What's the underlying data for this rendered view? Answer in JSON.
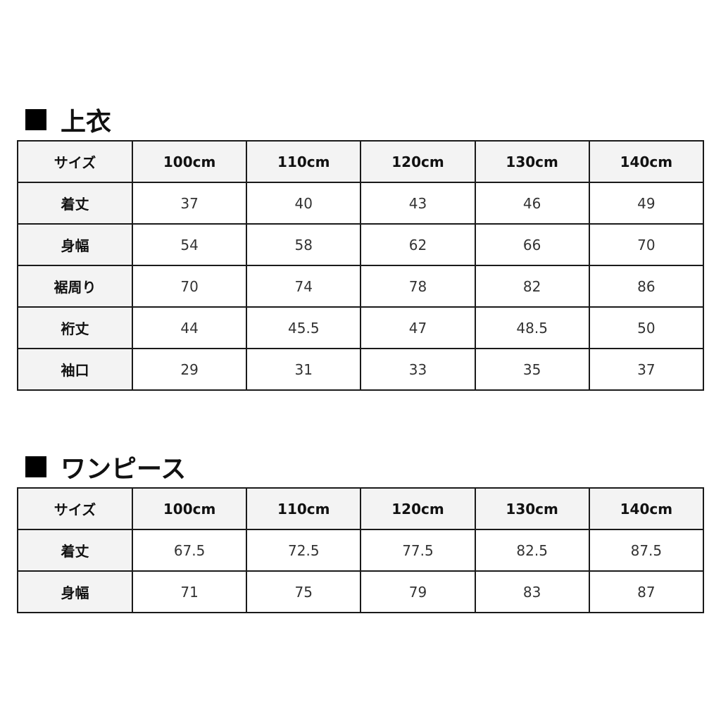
{
  "sections": [
    {
      "title": "上衣",
      "header": [
        "サイズ",
        "100cm",
        "110cm",
        "120cm",
        "130cm",
        "140cm"
      ],
      "rows": [
        {
          "label": "着丈",
          "values": [
            "37",
            "40",
            "43",
            "46",
            "49"
          ]
        },
        {
          "label": "身幅",
          "values": [
            "54",
            "58",
            "62",
            "66",
            "70"
          ]
        },
        {
          "label": "裾周り",
          "values": [
            "70",
            "74",
            "78",
            "82",
            "86"
          ]
        },
        {
          "label": "裄丈",
          "values": [
            "44",
            "45.5",
            "47",
            "48.5",
            "50"
          ]
        },
        {
          "label": "袖口",
          "values": [
            "29",
            "31",
            "33",
            "35",
            "37"
          ]
        }
      ]
    },
    {
      "title": "ワンピース",
      "header": [
        "サイズ",
        "100cm",
        "110cm",
        "120cm",
        "130cm",
        "140cm"
      ],
      "rows": [
        {
          "label": "着丈",
          "values": [
            "67.5",
            "72.5",
            "77.5",
            "82.5",
            "87.5"
          ]
        },
        {
          "label": "身幅",
          "values": [
            "71",
            "75",
            "79",
            "83",
            "87"
          ]
        }
      ]
    }
  ]
}
